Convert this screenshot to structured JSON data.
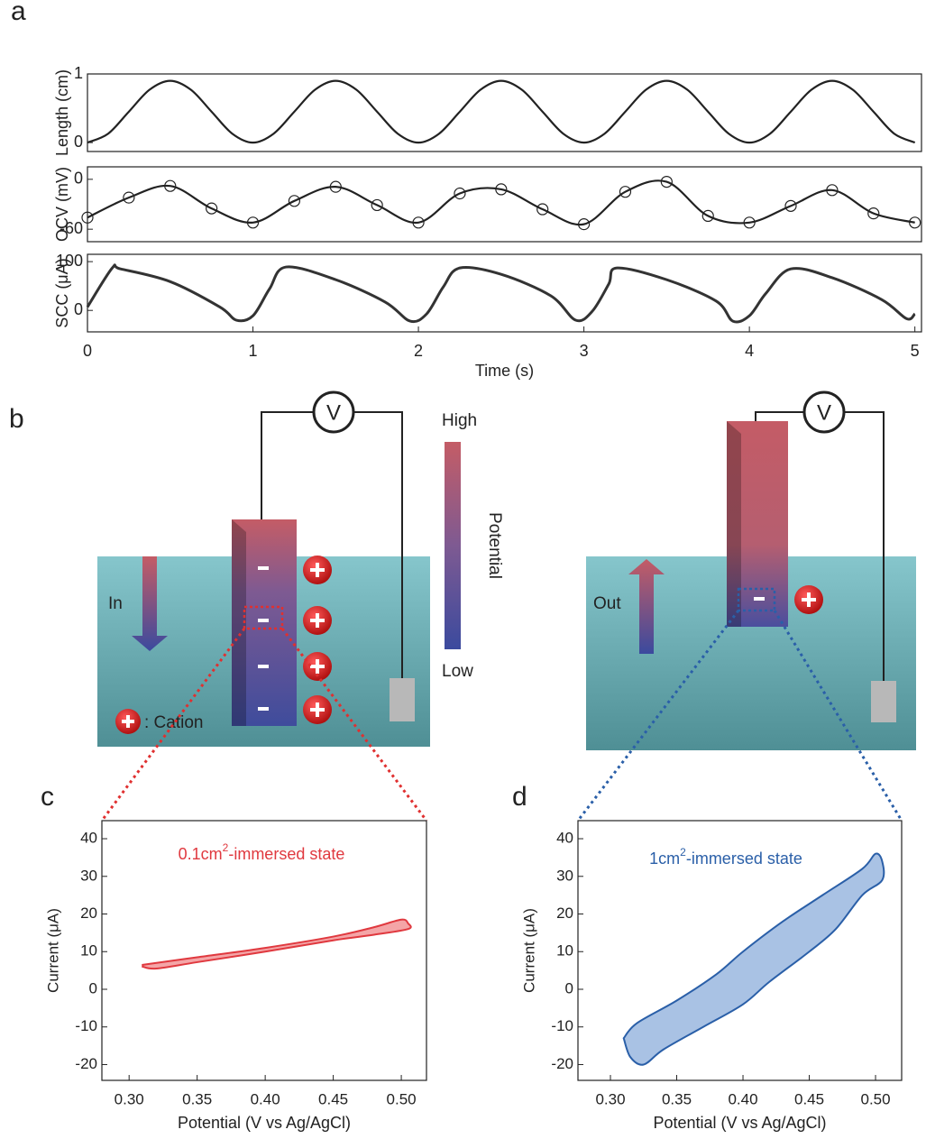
{
  "chart_data": [
    {
      "type": "line",
      "panel_label": "a",
      "ylabel": "Length (cm)",
      "color": "#222222",
      "x": [
        0,
        0.125,
        0.25,
        0.375,
        0.5,
        0.625,
        0.75,
        0.875,
        1,
        1.125,
        1.25,
        1.375,
        1.5,
        1.625,
        1.75,
        1.875,
        2,
        2.125,
        2.25,
        2.375,
        2.5,
        2.625,
        2.75,
        2.875,
        3,
        3.125,
        3.25,
        3.375,
        3.5,
        3.625,
        3.75,
        3.875,
        4,
        4.125,
        4.25,
        4.375,
        4.5,
        4.625,
        4.75,
        4.875,
        5
      ],
      "values": [
        0,
        0.13,
        0.45,
        0.77,
        0.9,
        0.77,
        0.45,
        0.13,
        0,
        0.13,
        0.45,
        0.77,
        0.9,
        0.77,
        0.45,
        0.13,
        0,
        0.13,
        0.45,
        0.77,
        0.9,
        0.77,
        0.45,
        0.13,
        0,
        0.13,
        0.45,
        0.77,
        0.9,
        0.77,
        0.45,
        0.13,
        0,
        0.13,
        0.45,
        0.77,
        0.9,
        0.77,
        0.45,
        0.13,
        0
      ],
      "xlim": [
        0,
        5.04
      ],
      "ylim": [
        -0.13,
        1
      ],
      "yticks": [
        0,
        1
      ]
    },
    {
      "type": "line",
      "ylabel": "OCV (mV)",
      "color": "#222222",
      "markers": "circle",
      "x": [
        0,
        0.25,
        0.5,
        0.75,
        1,
        1.25,
        1.5,
        1.75,
        2,
        2.25,
        2.5,
        2.75,
        3,
        3.25,
        3.5,
        3.75,
        4,
        4.25,
        4.5,
        4.75,
        5
      ],
      "values": [
        -46,
        -22,
        -8,
        -35,
        -52,
        -26,
        -9,
        -31,
        -52,
        -17,
        -12,
        -36,
        -54,
        -15,
        -3,
        -44,
        -52,
        -32,
        -13,
        -41,
        -52
      ],
      "xlim": [
        0,
        5.04
      ],
      "ylim": [
        -75,
        15
      ],
      "yticks": [
        -60,
        0
      ]
    },
    {
      "type": "line",
      "ylabel": "SCC (μA)",
      "xlabel": "Time (s)",
      "color": "#333333",
      "x": [
        0,
        0.15,
        0.2,
        0.5,
        0.8,
        0.9,
        1,
        1.1,
        1.2,
        1.5,
        1.8,
        1.95,
        2.05,
        2.15,
        2.25,
        2.5,
        2.8,
        2.95,
        3.05,
        3.15,
        3.2,
        3.5,
        3.8,
        3.9,
        4,
        4.1,
        4.25,
        4.5,
        4.8,
        4.95,
        5
      ],
      "values": [
        7,
        87,
        85,
        59,
        7,
        -20,
        -11,
        44,
        89,
        63,
        17,
        -22,
        -7,
        48,
        87,
        74,
        30,
        -20,
        -2,
        54,
        87,
        63,
        19,
        -22,
        -11,
        35,
        85,
        67,
        22,
        -17,
        -7
      ],
      "xlim": [
        0,
        5.04
      ],
      "ylim": [
        -44,
        115
      ],
      "xticks": [
        0,
        1,
        2,
        3,
        4,
        5
      ],
      "yticks": [
        0,
        100
      ]
    },
    {
      "type": "area",
      "panel_label": "c",
      "annotation": [
        "0.1cm",
        "2",
        "-immersed state"
      ],
      "xlabel": "Potential (V vs Ag/AgCl)",
      "ylabel": "Current (μA)",
      "color": "#e0393f",
      "fill": "#f4a5a7",
      "x": [
        0.31,
        0.35,
        0.4,
        0.45,
        0.48,
        0.5,
        0.505,
        0.505,
        0.48,
        0.45,
        0.4,
        0.35,
        0.32,
        0.31
      ],
      "values": [
        6.5,
        8.5,
        11,
        14,
        16.5,
        18.5,
        17.5,
        16,
        14.5,
        13,
        10,
        7.2,
        5.5,
        6
      ],
      "xlim": [
        0.28,
        0.5185
      ],
      "ylim": [
        -24.2,
        44.8
      ],
      "xticks": [
        {
          "value": 0.3,
          "label": "0.30"
        },
        {
          "value": 0.35,
          "label": "0.35"
        },
        {
          "value": 0.4,
          "label": "0.40"
        },
        {
          "value": 0.45,
          "label": "0.45"
        },
        {
          "value": 0.5,
          "label": "0.50"
        }
      ],
      "yticks": [
        -20,
        -10,
        0,
        10,
        20,
        30,
        40
      ]
    },
    {
      "type": "area",
      "panel_label": "d",
      "annotation": [
        "1cm",
        "2",
        "-immersed state"
      ],
      "xlabel": "Potential (V vs Ag/AgCl)",
      "ylabel": "Current (μA)",
      "color": "#2a5fa8",
      "fill": "#a9c2e4",
      "x": [
        0.31,
        0.32,
        0.35,
        0.38,
        0.4,
        0.43,
        0.46,
        0.49,
        0.5,
        0.505,
        0.505,
        0.49,
        0.47,
        0.45,
        0.42,
        0.4,
        0.37,
        0.34,
        0.325,
        0.315,
        0.31
      ],
      "values": [
        -13,
        -9,
        -3,
        4,
        10,
        18,
        25,
        32,
        36,
        34,
        29,
        25,
        16,
        10,
        2,
        -4,
        -10,
        -16,
        -20,
        -18,
        -13
      ],
      "xlim": [
        0.2755,
        0.5197
      ],
      "ylim": [
        -24.2,
        44.8
      ],
      "xticks": [
        {
          "value": 0.3,
          "label": "0.30"
        },
        {
          "value": 0.35,
          "label": "0.35"
        },
        {
          "value": 0.4,
          "label": "0.40"
        },
        {
          "value": 0.45,
          "label": "0.45"
        },
        {
          "value": 0.5,
          "label": "0.50"
        }
      ],
      "yticks": [
        -20,
        -10,
        0,
        10,
        20,
        30,
        40
      ]
    }
  ],
  "diagram": {
    "panel_label": "b",
    "voltmeter": "V",
    "high": "High",
    "low": "Low",
    "potential": "Potential",
    "in": "In",
    "out": "Out",
    "cation": ": Cation"
  }
}
